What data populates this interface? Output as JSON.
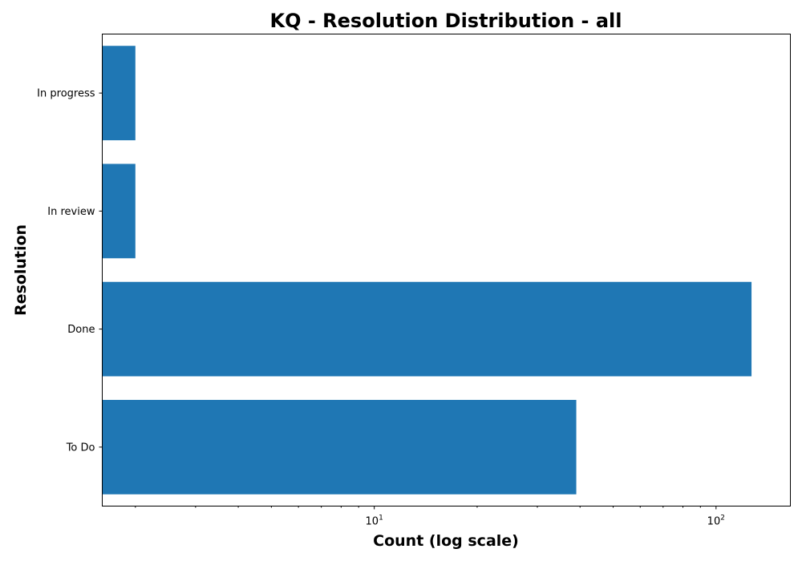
{
  "chart_data": {
    "type": "bar",
    "orientation": "horizontal",
    "title": "KQ - Resolution Distribution - all",
    "xlabel": "Count (log scale)",
    "ylabel": "Resolution",
    "x_scale": "log",
    "xlim": [
      1.6,
      165
    ],
    "x_major_ticks": [
      {
        "value": 10,
        "base": "10",
        "exp": "1"
      },
      {
        "value": 100,
        "base": "10",
        "exp": "2"
      }
    ],
    "categories": [
      "To Do",
      "Done",
      "In review",
      "In progress"
    ],
    "values": [
      39,
      127,
      2,
      2
    ],
    "bar_color": "#1f77b4",
    "grid": false,
    "legend": "none"
  }
}
